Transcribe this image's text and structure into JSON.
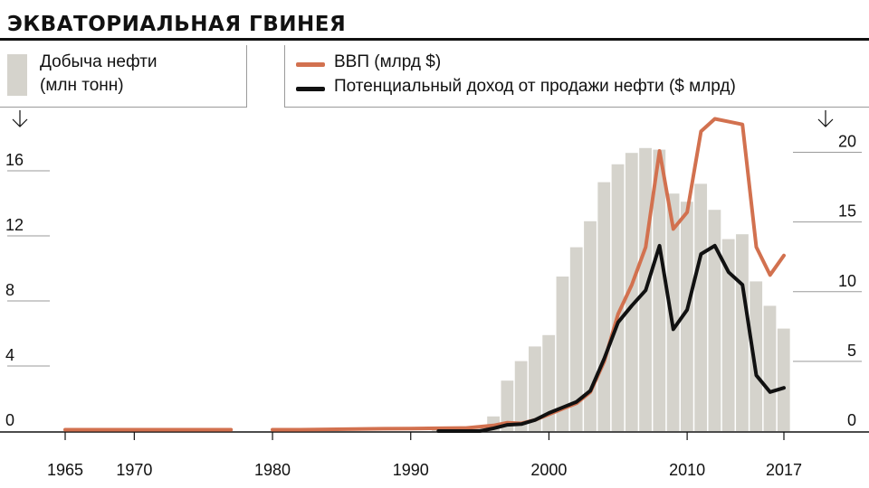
{
  "header": {
    "title": "ЭКВАТОРИАЛЬНАЯ ГВИНЕЯ"
  },
  "legend": {
    "oil_line1": "Добыча нефти",
    "oil_line2": "(млн тонн)",
    "gdp": "ВВП (млрд $)",
    "revenue": "Потенциальный доход от продажи нефти ($ млрд)"
  },
  "colors": {
    "bars": "#d5d3cc",
    "gdp": "#d2714f",
    "revenue": "#111111",
    "axis": "#111111"
  },
  "chart_data": {
    "type": "bar+line",
    "x_ticks": [
      "1965",
      "1970",
      "1980",
      "1990",
      "2000",
      "2010",
      "2017"
    ],
    "left_axis": {
      "ticks": [
        0,
        4,
        8,
        12,
        16
      ],
      "range": [
        0,
        18
      ]
    },
    "right_axis": {
      "ticks": [
        0,
        5,
        10,
        15,
        20
      ],
      "range": [
        0,
        22.5
      ]
    },
    "x_range": [
      1965,
      2017
    ],
    "bars_series": {
      "name": "Добыча нефти (млн тонн)",
      "axis": "left",
      "x": [
        1992,
        1993,
        1994,
        1995,
        1996,
        1997,
        1998,
        1999,
        2000,
        2001,
        2002,
        2003,
        2004,
        2005,
        2006,
        2007,
        2008,
        2009,
        2010,
        2011,
        2012,
        2013,
        2014,
        2015,
        2016,
        2017
      ],
      "values": [
        0.1,
        0.1,
        0.1,
        0.2,
        0.9,
        3.1,
        4.3,
        5.2,
        5.9,
        9.5,
        11.3,
        12.9,
        15.3,
        16.4,
        17.1,
        17.4,
        17.3,
        14.6,
        14.1,
        15.2,
        13.6,
        11.8,
        12.1,
        9.2,
        7.7,
        6.3
      ]
    },
    "series": [
      {
        "name": "ВВП (млрд $)",
        "axis": "right",
        "x": [
          1965,
          1967,
          1969,
          1971,
          1973,
          1975,
          1977,
          1980,
          1982,
          1984,
          1986,
          1988,
          1990,
          1992,
          1994,
          1996,
          1997,
          1998,
          1999,
          2000,
          2001,
          2002,
          2003,
          2004,
          2005,
          2006,
          2007,
          2008,
          2009,
          2010,
          2011,
          2012,
          2013,
          2014,
          2015,
          2016,
          2017
        ],
        "values": [
          0.1,
          0.1,
          0.1,
          0.1,
          0.1,
          0.1,
          0.1,
          0.1,
          0.1,
          0.12,
          0.15,
          0.17,
          0.18,
          0.2,
          0.22,
          0.4,
          0.6,
          0.55,
          0.8,
          1.2,
          1.6,
          2.0,
          2.8,
          5.0,
          8.4,
          10.5,
          13.2,
          20.1,
          14.5,
          15.7,
          21.5,
          22.4,
          22.2,
          22.0,
          13.2,
          11.2,
          12.6
        ]
      },
      {
        "name": "Потенциальный доход от продажи нефти ($ млрд)",
        "axis": "right",
        "x": [
          1992,
          1994,
          1995,
          1996,
          1997,
          1998,
          1999,
          2000,
          2001,
          2002,
          2003,
          2004,
          2005,
          2006,
          2007,
          2008,
          2009,
          2010,
          2011,
          2012,
          2013,
          2014,
          2015,
          2016,
          2017
        ],
        "values": [
          0,
          0,
          0,
          0.2,
          0.45,
          0.5,
          0.8,
          1.3,
          1.7,
          2.1,
          2.9,
          5.2,
          7.8,
          9.0,
          10.1,
          13.3,
          7.3,
          8.7,
          12.7,
          13.3,
          11.4,
          10.5,
          4.0,
          2.8,
          3.1
        ]
      }
    ]
  }
}
